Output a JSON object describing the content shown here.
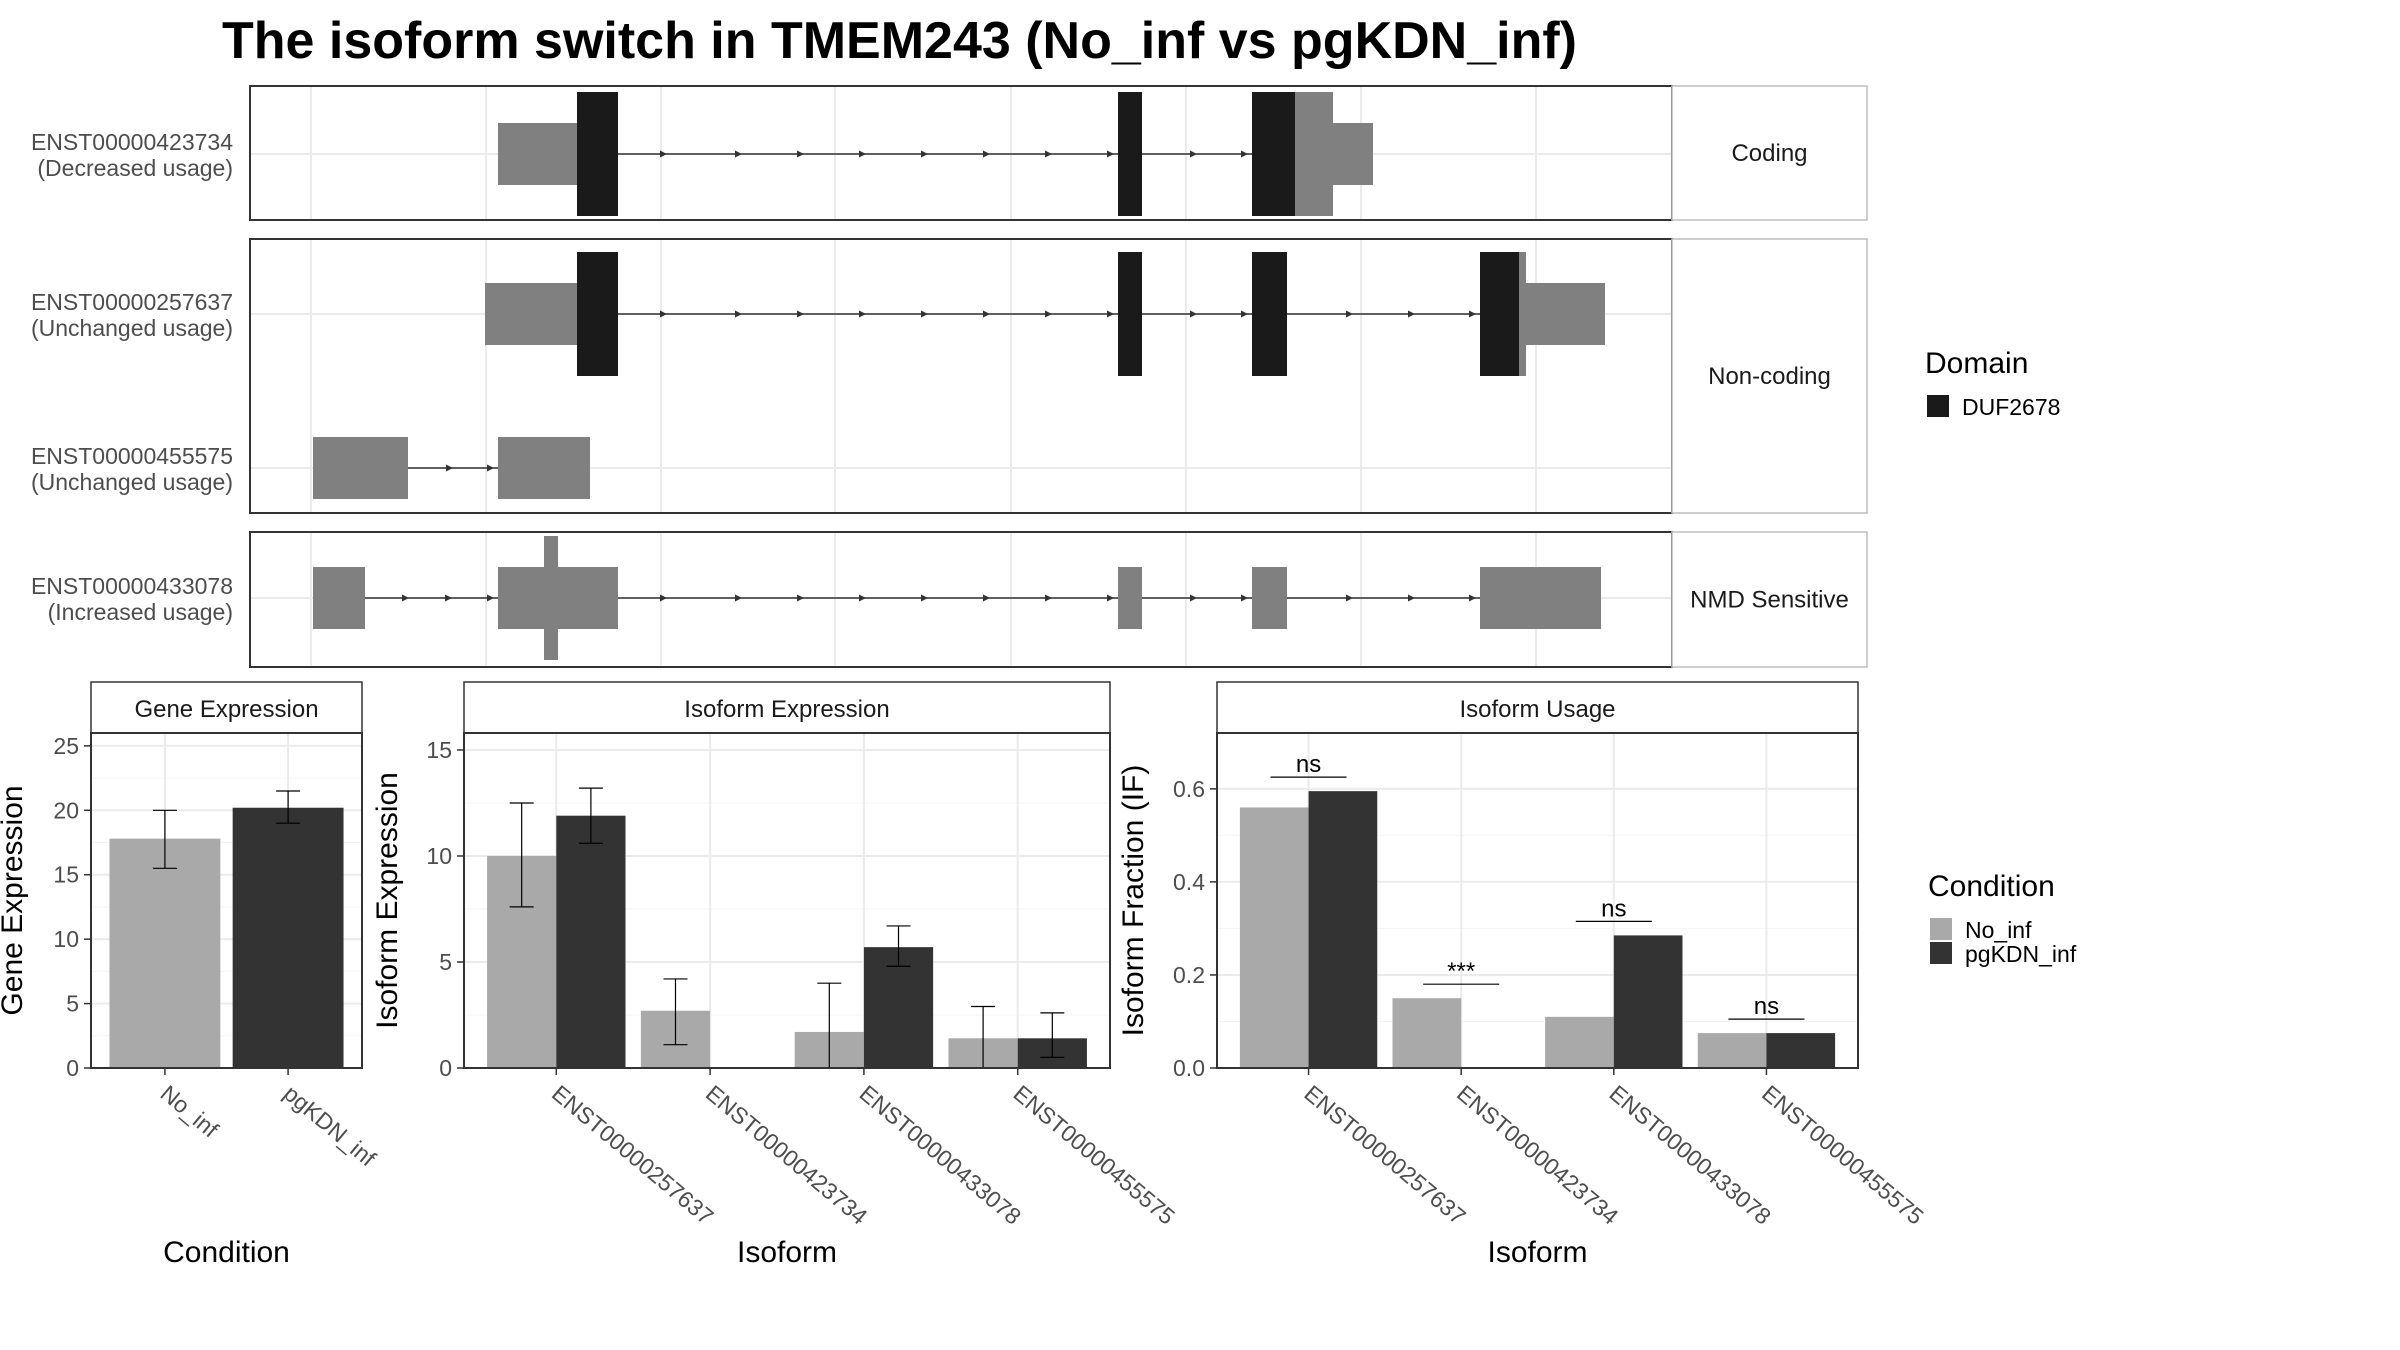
{
  "title": "The isoform switch in TMEM243 (No_inf vs pgKDN_inf)",
  "colors": {
    "utr": "#808080",
    "domain": "#1a1a1a",
    "no_inf": "#a9a9a9",
    "pgkdn_inf": "#333333",
    "grid": "#ebebeb",
    "panel_border": "#333333",
    "strip_border": "#bdbdbd"
  },
  "structure": {
    "facets": [
      {
        "label": "Coding",
        "rows": [
          {
            "label_id": "ENST00000423734",
            "label_usage": "(Decreased usage)"
          }
        ]
      },
      {
        "label": "Non-coding",
        "rows": [
          {
            "label_id": "ENST00000257637",
            "label_usage": "(Unchanged usage)"
          },
          {
            "label_id": "ENST00000455575",
            "label_usage": "(Unchanged usage)"
          }
        ]
      },
      {
        "label": "NMD Sensitive",
        "rows": [
          {
            "label_id": "ENST00000433078",
            "label_usage": "(Increased usage)"
          }
        ]
      }
    ],
    "domain_legend": {
      "title": "Domain",
      "items": [
        {
          "label": "DUF2678",
          "color": "#1a1a1a"
        }
      ]
    }
  },
  "chart_data": [
    {
      "type": "bar",
      "strip": "Gene Expression",
      "xlabel": "Condition",
      "ylabel": "Gene Expression",
      "categories": [
        "No_inf",
        "pgKDN_inf"
      ],
      "ylim": [
        0,
        26
      ],
      "yticks": [
        0,
        5,
        10,
        15,
        20,
        25
      ],
      "series": [
        {
          "name": "No_inf",
          "values": [
            17.8,
            null
          ],
          "err_low": [
            15.5,
            null
          ],
          "err_high": [
            20.0,
            null
          ]
        },
        {
          "name": "pgKDN_inf",
          "values": [
            null,
            20.2
          ],
          "err_low": [
            null,
            19.0
          ],
          "err_high": [
            null,
            21.5
          ]
        }
      ]
    },
    {
      "type": "bar",
      "strip": "Isoform Expression",
      "xlabel": "Isoform",
      "ylabel": "Isoform Expression",
      "categories": [
        "ENST00000257637",
        "ENST00000423734",
        "ENST00000433078",
        "ENST00000455575"
      ],
      "ylim": [
        0,
        15.8
      ],
      "yticks": [
        0,
        5,
        10,
        15
      ],
      "series": [
        {
          "name": "No_inf",
          "values": [
            10.0,
            2.7,
            1.7,
            1.4
          ],
          "err_low": [
            7.6,
            1.1,
            0.0,
            0.0
          ],
          "err_high": [
            12.5,
            4.2,
            4.0,
            2.9
          ]
        },
        {
          "name": "pgKDN_inf",
          "values": [
            11.9,
            0.0,
            5.7,
            1.4
          ],
          "err_low": [
            10.6,
            0.0,
            4.8,
            0.5
          ],
          "err_high": [
            13.2,
            0.0,
            6.7,
            2.6
          ]
        }
      ]
    },
    {
      "type": "bar",
      "strip": "Isoform Usage",
      "xlabel": "Isoform",
      "ylabel": "Isoform Fraction (IF)",
      "categories": [
        "ENST00000257637",
        "ENST00000423734",
        "ENST00000433078",
        "ENST00000455575"
      ],
      "ylim": [
        0,
        0.72
      ],
      "yticks": [
        0.0,
        0.2,
        0.4,
        0.6
      ],
      "ytick_labels": [
        "0.0",
        "0.2",
        "0.4",
        "0.6"
      ],
      "series": [
        {
          "name": "No_inf",
          "values": [
            0.56,
            0.15,
            0.11,
            0.075
          ]
        },
        {
          "name": "pgKDN_inf",
          "values": [
            0.595,
            0.0,
            0.285,
            0.075
          ]
        }
      ],
      "significance": [
        "ns",
        "***",
        "ns",
        "ns"
      ]
    }
  ],
  "condition_legend": {
    "title": "Condition",
    "items": [
      {
        "label": "No_inf",
        "color": "#a9a9a9"
      },
      {
        "label": "pgKDN_inf",
        "color": "#333333"
      }
    ]
  }
}
